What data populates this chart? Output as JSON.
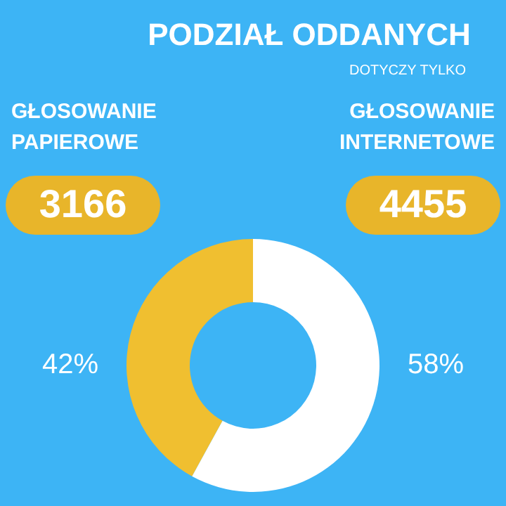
{
  "chart_data": {
    "type": "donut",
    "title": "PODZIAŁ ODDANYCH",
    "subtitle": "DOTYCZY TYLKO",
    "categories": [
      "GŁOSOWANIE PAPIEROWE",
      "GŁOSOWANIE INTERNETOWE"
    ],
    "values": [
      42,
      58
    ],
    "annotations": [
      "3166",
      "4455"
    ],
    "colors": [
      "#f0bf30",
      "#ffffff"
    ],
    "value_labels": [
      "42%",
      "58%"
    ],
    "legend": false
  }
}
